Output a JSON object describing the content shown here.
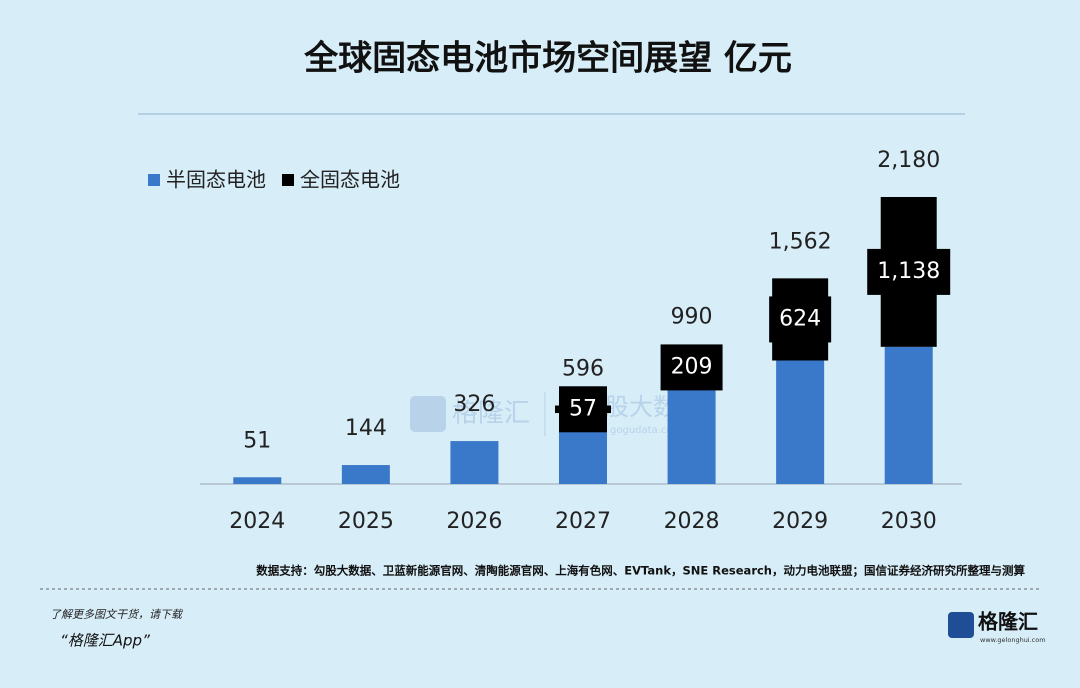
{
  "chart_data": {
    "type": "bar",
    "stacked": true,
    "title": "全球固态电池市场空间展望 亿元",
    "categories": [
      "2024",
      "2025",
      "2026",
      "2027",
      "2028",
      "2029",
      "2030"
    ],
    "series": [
      {
        "name": "半固态电池",
        "color": "#3a78c9",
        "values": [
          51,
          144,
          326,
          539,
          781,
          938,
          1042
        ]
      },
      {
        "name": "全固态电池",
        "color": "#000000",
        "values": [
          null,
          null,
          null,
          57,
          209,
          624,
          1138
        ],
        "value_labels": [
          null,
          null,
          null,
          "57",
          "209",
          "624",
          "1,138"
        ]
      }
    ],
    "totals": [
      51,
      144,
      326,
      596,
      990,
      1562,
      2180
    ],
    "total_labels": [
      "51",
      "144",
      "326",
      "596",
      "990",
      "1,562",
      "2,180"
    ],
    "source": "数据支持：勾股大数据、卫蓝新能源官网、清陶能源官网、上海有色网、EVTank，SNE Research，动力电池联盟；国信证券经济研究所整理与测算",
    "legend": "top-left"
  },
  "watermark": {
    "left": "格隆汇",
    "right": "股大数据",
    "url": "gogudata.com"
  },
  "footer": {
    "line1": "了解更多图文干货，请下载",
    "line2": "“格隆汇App”",
    "logo": "格隆汇",
    "logo_url": "www.gelonghui.com"
  }
}
